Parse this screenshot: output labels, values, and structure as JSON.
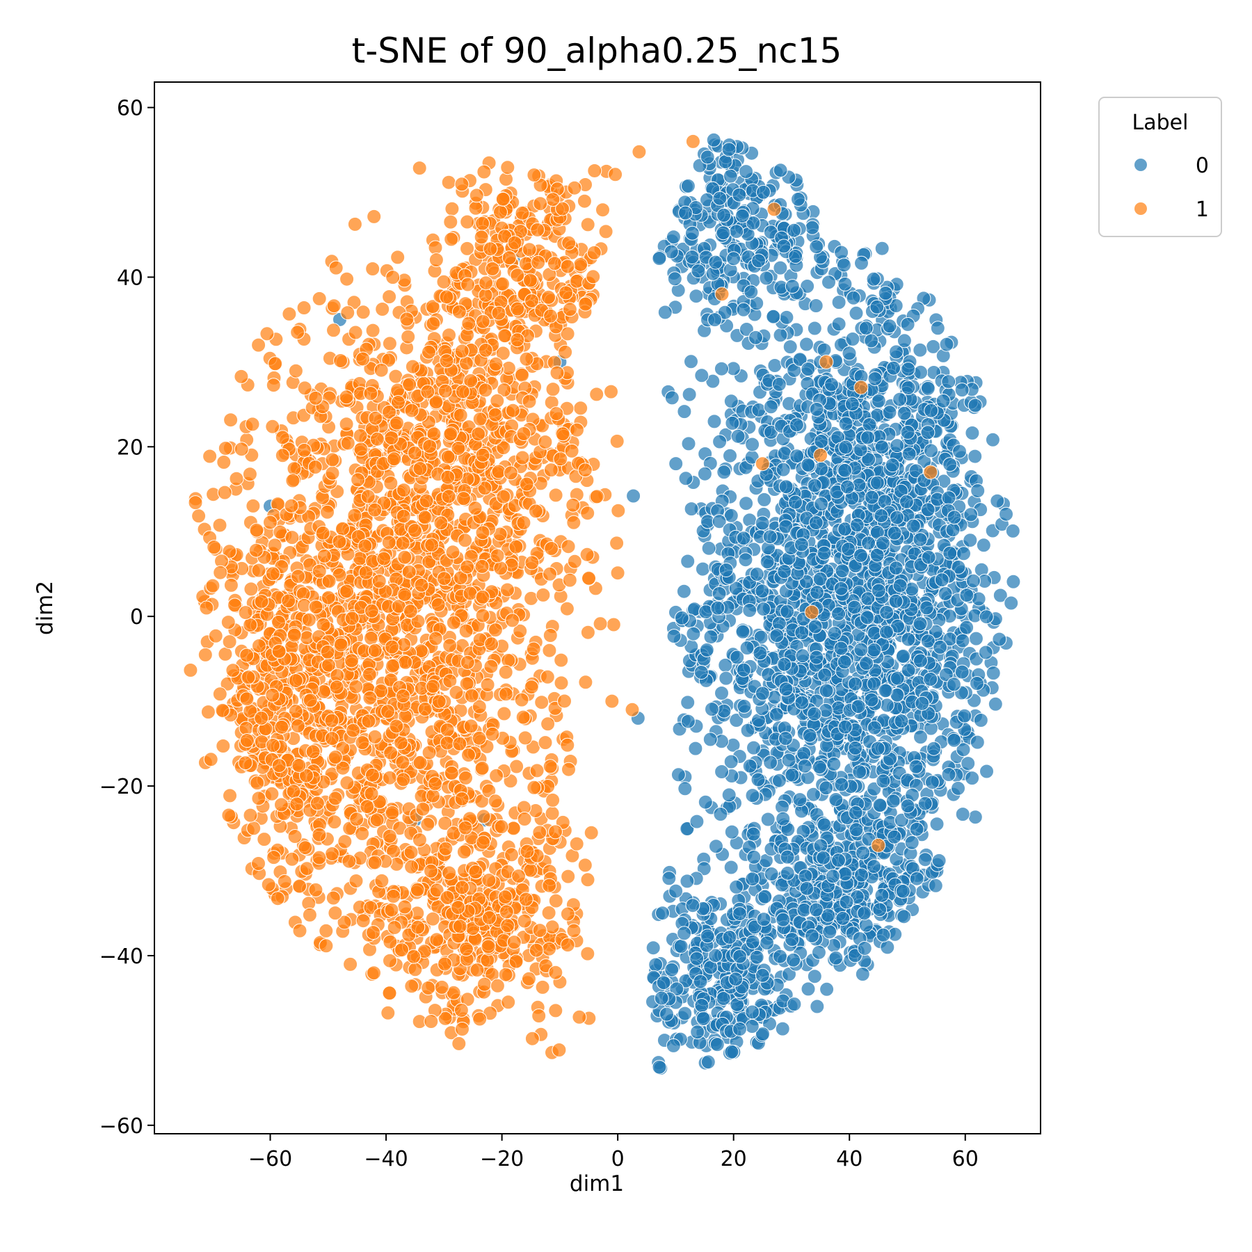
{
  "chart_data": {
    "type": "scatter",
    "title": "t-SNE of 90_alpha0.25_nc15",
    "xlabel": "dim1",
    "ylabel": "dim2",
    "xlim": [
      -80,
      73
    ],
    "ylim": [
      -61,
      63
    ],
    "xticks": [
      -60,
      -40,
      -20,
      0,
      20,
      40,
      60
    ],
    "yticks": [
      -60,
      -40,
      -20,
      0,
      20,
      40,
      60
    ],
    "xtick_labels": [
      "−60",
      "−40",
      "−20",
      "0",
      "20",
      "40",
      "60"
    ],
    "ytick_labels": [
      "−60",
      "−40",
      "−20",
      "0",
      "20",
      "40",
      "60"
    ],
    "grid": false,
    "legend": {
      "title": "Label",
      "placement": "outside upper right",
      "entries": [
        "0",
        "1"
      ]
    },
    "colors": {
      "0": "#1f77b4",
      "1": "#ff7f0e"
    },
    "series": [
      {
        "name": "0",
        "color": "#1f77b4",
        "clusters": [
          {
            "center": [
              36,
              0
            ],
            "spread": [
              13,
              16
            ],
            "n": 1400
          },
          {
            "center": [
              45,
              20
            ],
            "spread": [
              10,
              13
            ],
            "n": 500
          },
          {
            "center": [
              18,
              -44
            ],
            "spread": [
              7,
              6
            ],
            "n": 260
          },
          {
            "center": [
              38,
              -33
            ],
            "spread": [
              12,
              5
            ],
            "n": 320
          },
          {
            "center": [
              20,
              46
            ],
            "spread": [
              9,
              6
            ],
            "n": 260
          },
          {
            "center": [
              50,
              -8
            ],
            "spread": [
              8,
              14
            ],
            "n": 300
          }
        ],
        "sample_points": [
          [
            2.7,
            14.2
          ],
          [
            3.5,
            -12.0
          ],
          [
            -18,
            42
          ],
          [
            -38,
            25
          ],
          [
            -48,
            35
          ],
          [
            -10,
            30
          ],
          [
            -23,
            -24
          ],
          [
            -35,
            -24
          ],
          [
            -40,
            18
          ],
          [
            -60,
            13
          ],
          [
            -31,
            -30
          ]
        ]
      },
      {
        "name": "1",
        "color": "#ff7f0e",
        "clusters": [
          {
            "center": [
              -40,
              -5
            ],
            "spread": [
              15,
              17
            ],
            "n": 1500
          },
          {
            "center": [
              -28,
              22
            ],
            "spread": [
              13,
              10
            ],
            "n": 600
          },
          {
            "center": [
              -24,
              -36
            ],
            "spread": [
              9,
              6
            ],
            "n": 350
          },
          {
            "center": [
              -15,
              42
            ],
            "spread": [
              8,
              6
            ],
            "n": 250
          },
          {
            "center": [
              -58,
              -12
            ],
            "spread": [
              6,
              12
            ],
            "n": 250
          }
        ],
        "sample_points": [
          [
            -5,
            4.5
          ],
          [
            2.5,
            -11
          ],
          [
            -1,
            -10
          ],
          [
            33.5,
            0.5
          ],
          [
            45,
            -27
          ],
          [
            35,
            19
          ],
          [
            36,
            30
          ],
          [
            18,
            38
          ],
          [
            27,
            48
          ],
          [
            13,
            56
          ],
          [
            25,
            18
          ],
          [
            42,
            27
          ],
          [
            54,
            17
          ]
        ]
      }
    ]
  }
}
